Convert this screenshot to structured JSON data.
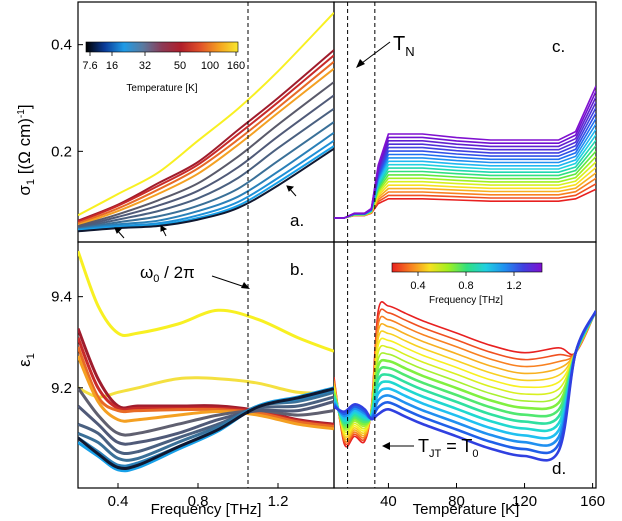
{
  "figure": {
    "y_label_top_sym": "σ",
    "y_label_top_sub": "1",
    "y_label_top_units": " [(Ω cm)",
    "y_label_top_exp": "-1",
    "y_label_top_close": "]",
    "y_label_bottom_sym": "ε",
    "y_label_bottom_sub": "1",
    "x_label_left": "Frequency [THz]",
    "x_label_right": "Temperature [K]"
  },
  "chart_data": [
    {
      "panel": "a.",
      "type": "line",
      "title": "",
      "xlabel": "",
      "ylabel": "σ1 [(Ω cm)-1]",
      "xlim": [
        0.2,
        1.48
      ],
      "ylim": [
        0.03,
        0.48
      ],
      "yticks": [
        0.2,
        0.4
      ],
      "ytick_labels": [
        "0.2",
        "0.4"
      ],
      "vline": 1.05,
      "colorbar": {
        "label": "Temperature [K]",
        "tick_labels": [
          "7.6",
          "16",
          "32",
          "50",
          "100",
          "160"
        ],
        "colors": [
          "#000000",
          "#0a3c9a",
          "#1f9be6",
          "#5a7aa0",
          "#8c3a56",
          "#b01e2a",
          "#e0502a",
          "#f5a020",
          "#f8e830"
        ]
      },
      "x": [
        0.2,
        0.4,
        0.6,
        0.8,
        1.0,
        1.2,
        1.48
      ],
      "series": [
        {
          "color": "#f8f022",
          "values": [
            0.08,
            0.12,
            0.16,
            0.22,
            0.28,
            0.35,
            0.46
          ]
        },
        {
          "color": "#a01c2c",
          "values": [
            0.07,
            0.1,
            0.14,
            0.18,
            0.24,
            0.3,
            0.39
          ]
        },
        {
          "color": "#c82a2a",
          "values": [
            0.068,
            0.098,
            0.135,
            0.175,
            0.232,
            0.292,
            0.38
          ]
        },
        {
          "color": "#e86a26",
          "values": [
            0.065,
            0.093,
            0.128,
            0.168,
            0.222,
            0.282,
            0.368
          ]
        },
        {
          "color": "#f4a022",
          "values": [
            0.062,
            0.088,
            0.12,
            0.158,
            0.212,
            0.272,
            0.355
          ]
        },
        {
          "color": "#5a5a6a",
          "values": [
            0.06,
            0.082,
            0.108,
            0.14,
            0.19,
            0.25,
            0.33
          ]
        },
        {
          "color": "#505a78",
          "values": [
            0.058,
            0.077,
            0.098,
            0.126,
            0.17,
            0.228,
            0.305
          ]
        },
        {
          "color": "#4a6080",
          "values": [
            0.056,
            0.072,
            0.088,
            0.112,
            0.15,
            0.206,
            0.28
          ]
        },
        {
          "color": "#3a7098",
          "values": [
            0.055,
            0.067,
            0.078,
            0.098,
            0.13,
            0.182,
            0.255
          ]
        },
        {
          "color": "#2a80b8",
          "values": [
            0.054,
            0.063,
            0.07,
            0.088,
            0.115,
            0.162,
            0.235
          ]
        },
        {
          "color": "#1e90d8",
          "values": [
            0.053,
            0.06,
            0.065,
            0.08,
            0.105,
            0.15,
            0.22
          ]
        },
        {
          "color": "#18a0e8",
          "values": [
            0.052,
            0.058,
            0.062,
            0.075,
            0.098,
            0.142,
            0.21
          ]
        },
        {
          "color": "#101830",
          "values": [
            0.05,
            0.056,
            0.06,
            0.072,
            0.094,
            0.136,
            0.205
          ]
        }
      ]
    },
    {
      "panel": "b.",
      "type": "line",
      "title": "",
      "xlabel": "Frequency [THz]",
      "ylabel": "ε1",
      "xlim": [
        0.2,
        1.48
      ],
      "ylim": [
        8.98,
        9.52
      ],
      "xticks": [
        0.4,
        0.8,
        1.2
      ],
      "xtick_labels": [
        "0.4",
        "0.8",
        "1.2"
      ],
      "yticks": [
        9.2,
        9.4
      ],
      "ytick_labels": [
        "9.2",
        "9.4"
      ],
      "vline": 1.05,
      "annotation_sym": "ω",
      "annotation_sub": "0",
      "annotation_rest": " / 2π",
      "x": [
        0.2,
        0.3,
        0.4,
        0.5,
        0.7,
        0.9,
        1.1,
        1.3,
        1.48
      ],
      "series": [
        {
          "color": "#f8f022",
          "values": [
            9.5,
            9.38,
            9.32,
            9.32,
            9.34,
            9.37,
            9.35,
            9.31,
            9.28
          ]
        },
        {
          "color": "#f4e040",
          "values": [
            9.2,
            9.18,
            9.19,
            9.2,
            9.22,
            9.22,
            9.21,
            9.19,
            9.19
          ]
        },
        {
          "color": "#a01c2c",
          "values": [
            9.33,
            9.22,
            9.16,
            9.16,
            9.16,
            9.16,
            9.15,
            9.13,
            9.12
          ]
        },
        {
          "color": "#c82a2a",
          "values": [
            9.31,
            9.2,
            9.155,
            9.155,
            9.155,
            9.155,
            9.148,
            9.128,
            9.118
          ]
        },
        {
          "color": "#e86a26",
          "values": [
            9.29,
            9.18,
            9.15,
            9.15,
            9.152,
            9.152,
            9.145,
            9.125,
            9.115
          ]
        },
        {
          "color": "#f4a022",
          "values": [
            9.27,
            9.17,
            9.13,
            9.13,
            9.14,
            9.148,
            9.14,
            9.12,
            9.11
          ]
        },
        {
          "color": "#606070",
          "values": [
            9.2,
            9.14,
            9.1,
            9.1,
            9.12,
            9.14,
            9.15,
            9.14,
            9.15
          ]
        },
        {
          "color": "#505a78",
          "values": [
            9.16,
            9.12,
            9.08,
            9.08,
            9.1,
            9.13,
            9.15,
            9.15,
            9.17
          ]
        },
        {
          "color": "#4a6080",
          "values": [
            9.12,
            9.1,
            9.06,
            9.06,
            9.09,
            9.12,
            9.155,
            9.16,
            9.18
          ]
        },
        {
          "color": "#3a7098",
          "values": [
            9.1,
            9.08,
            9.045,
            9.045,
            9.08,
            9.115,
            9.16,
            9.17,
            9.19
          ]
        },
        {
          "color": "#2a80b8",
          "values": [
            9.09,
            9.06,
            9.03,
            9.035,
            9.07,
            9.11,
            9.16,
            9.175,
            9.195
          ]
        },
        {
          "color": "#18a0e8",
          "values": [
            9.08,
            9.05,
            9.02,
            9.025,
            9.065,
            9.105,
            9.16,
            9.18,
            9.2
          ]
        },
        {
          "color": "#101830",
          "values": [
            9.09,
            9.055,
            9.025,
            9.03,
            9.07,
            9.108,
            9.158,
            9.178,
            9.198
          ]
        }
      ]
    },
    {
      "panel": "c.",
      "type": "line",
      "title": "",
      "xlabel": "",
      "ylabel": "",
      "xlim": [
        8,
        162
      ],
      "ylim": [
        0,
        1
      ],
      "vlines": [
        16,
        32
      ],
      "annotation_sym": "T",
      "annotation_sub": "N",
      "x": [
        8,
        14,
        20,
        26,
        30,
        34,
        40,
        60,
        80,
        100,
        120,
        140,
        150,
        162
      ],
      "series_base": [
        0.1,
        0.1,
        0.11,
        0.11,
        0.12,
        0.16,
        0.18,
        0.18,
        0.175,
        0.17,
        0.17,
        0.17,
        0.18,
        0.22
      ],
      "series_offset": [
        0.0,
        0.0,
        0.01,
        0.01,
        0.02,
        0.16,
        0.27,
        0.27,
        0.26,
        0.255,
        0.255,
        0.255,
        0.28,
        0.43
      ],
      "colors": [
        "#e82020",
        "#f05020",
        "#f88020",
        "#f8b020",
        "#f8e020",
        "#d8f020",
        "#a0f020",
        "#60e840",
        "#30e080",
        "#20d8b0",
        "#20d0e0",
        "#20b8f0",
        "#2090f0",
        "#2070f0",
        "#3050e8",
        "#4040e0",
        "#5030d8",
        "#6020d0",
        "#7010d0",
        "#8010d0"
      ]
    },
    {
      "panel": "d.",
      "type": "line",
      "title": "",
      "xlabel": "Temperature [K]",
      "ylabel": "",
      "xlim": [
        8,
        162
      ],
      "ylim": [
        0,
        1
      ],
      "xticks": [
        40,
        80,
        120,
        160
      ],
      "xtick_labels": [
        "40",
        "80",
        "120",
        "160"
      ],
      "vlines": [
        16,
        32
      ],
      "annotation_sym": "T",
      "annotation_sub": "JT",
      "annotation_rest": " = T",
      "annotation_sub2": "0",
      "colorbar": {
        "label": "Frequency [THz]",
        "tick_labels": [
          "0.4",
          "0.8",
          "1.2"
        ],
        "colors": [
          "#e82020",
          "#f88020",
          "#f8e020",
          "#a0f020",
          "#30e080",
          "#20d0e0",
          "#2090f0",
          "#4040e0",
          "#8010d0"
        ]
      },
      "x": [
        8,
        14,
        20,
        26,
        30,
        34,
        40,
        50,
        60,
        80,
        100,
        120,
        140,
        150,
        162
      ],
      "colors": [
        "#e82020",
        "#f05020",
        "#f88020",
        "#f8b020",
        "#f8d020",
        "#f8f020",
        "#d8f020",
        "#a8f030",
        "#80f040",
        "#50e870",
        "#30e0a0",
        "#20d8d0",
        "#20c0f0",
        "#2090f0",
        "#2060e8",
        "#3040e0"
      ]
    }
  ]
}
